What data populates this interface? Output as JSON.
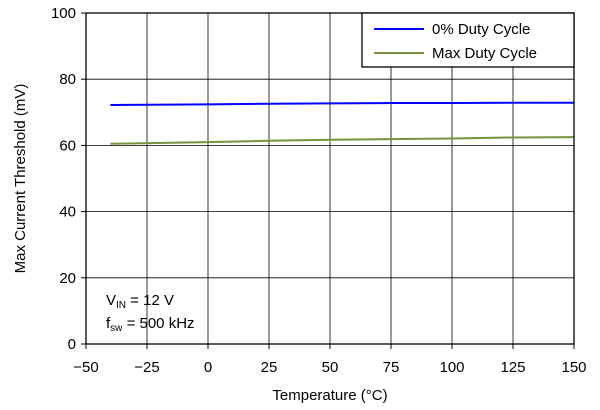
{
  "chart_data": {
    "type": "line",
    "xlabel": "Temperature (°C)",
    "ylabel": "Max Current Threshold (mV)",
    "xlim": [
      -50,
      150
    ],
    "ylim": [
      0,
      100
    ],
    "xticks": [
      -50,
      -25,
      0,
      25,
      50,
      75,
      100,
      125,
      150
    ],
    "xtick_labels": [
      "−50",
      "−25",
      "0",
      "25",
      "50",
      "75",
      "100",
      "125",
      "150"
    ],
    "yticks": [
      0,
      20,
      40,
      60,
      80,
      100
    ],
    "ytick_labels": [
      "0",
      "20",
      "40",
      "60",
      "80",
      "100"
    ],
    "grid": true,
    "legend_position": "top-right",
    "series": [
      {
        "name": "0% Duty Cycle",
        "color": "#0000ff",
        "x": [
          -40,
          0,
          25,
          50,
          75,
          100,
          125,
          150
        ],
        "y": [
          72.2,
          72.4,
          72.6,
          72.7,
          72.8,
          72.8,
          72.9,
          72.9
        ]
      },
      {
        "name": "Max Duty Cycle",
        "color": "#77933c",
        "x": [
          -40,
          0,
          25,
          50,
          75,
          100,
          125,
          150
        ],
        "y": [
          60.5,
          61.0,
          61.4,
          61.7,
          61.9,
          62.1,
          62.4,
          62.5
        ]
      }
    ],
    "annotations": {
      "vin": {
        "main": "V",
        "sub": "IN",
        "rest": " = 12 V"
      },
      "fsw": {
        "main": "f",
        "sub": "sw",
        "rest": " = 500 kHz"
      }
    }
  }
}
